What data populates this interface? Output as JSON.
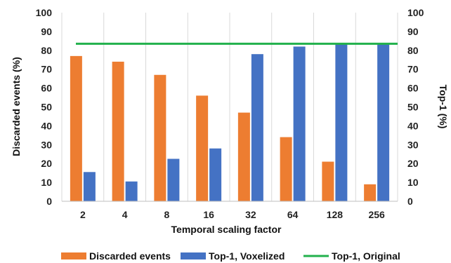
{
  "chart_data": {
    "type": "bar",
    "categories": [
      "2",
      "4",
      "8",
      "16",
      "32",
      "64",
      "128",
      "256"
    ],
    "series": [
      {
        "name": "Discarded events",
        "kind": "bar",
        "axis": "left",
        "color": "#ED7D31",
        "values": [
          77,
          74,
          67,
          56,
          47,
          34,
          21,
          9
        ]
      },
      {
        "name": "Top-1, Voxelized",
        "kind": "bar",
        "axis": "right",
        "color": "#4472C4",
        "values": [
          15.5,
          10.5,
          22.5,
          28,
          78,
          82,
          84,
          84
        ]
      },
      {
        "name": "Top-1, Original",
        "kind": "line",
        "axis": "right",
        "color": "#22B14C",
        "values": [
          83.5,
          83.5,
          83.5,
          83.5,
          83.5,
          83.5,
          83.5,
          83.5
        ]
      }
    ],
    "title": "",
    "xlabel": "Temporal scaling factor",
    "ylabel": "Discarded events (%)",
    "y2label": "Top-1 (%)",
    "ylim": [
      0,
      100
    ],
    "y2lim": [
      0,
      100
    ],
    "yticks": [
      "0",
      "10",
      "20",
      "30",
      "40",
      "50",
      "60",
      "70",
      "80",
      "90",
      "100"
    ],
    "y2ticks": [
      "0",
      "10",
      "20",
      "30",
      "40",
      "50",
      "60",
      "70",
      "80",
      "90",
      "100"
    ],
    "grid": "vertical category separators",
    "legend": "bottom"
  }
}
